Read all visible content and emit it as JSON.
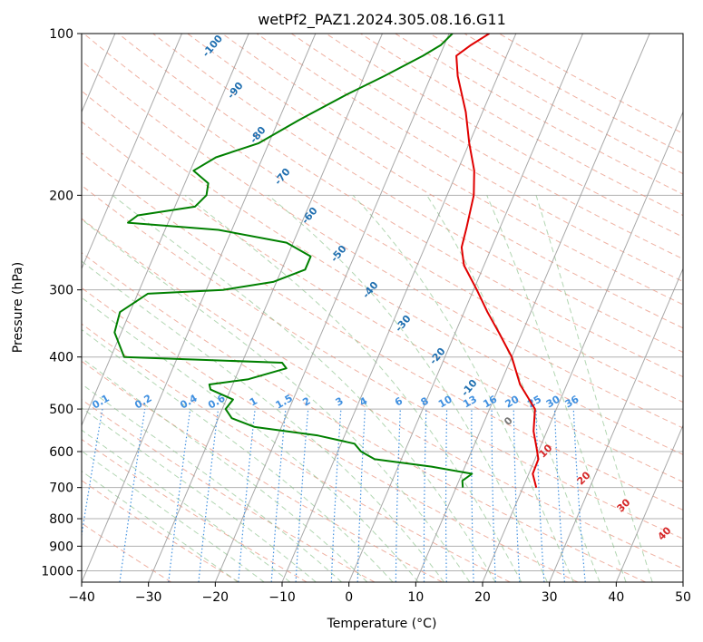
{
  "chart_data": {
    "type": "line",
    "subtype": "skew-t log-p diagram",
    "title": "wetPf2_PAZ1.2024.305.08.16.G11",
    "xlabel": "Temperature (°C)",
    "ylabel": "Pressure (hPa)",
    "xlim": [
      -40,
      50
    ],
    "ylim": [
      1050,
      100
    ],
    "y_scale": "log",
    "x_ticks": [
      -40,
      -30,
      -20,
      -10,
      0,
      10,
      20,
      30,
      40,
      50
    ],
    "y_ticks": [
      100,
      200,
      300,
      400,
      500,
      600,
      700,
      800,
      900,
      1000
    ],
    "grid": true,
    "series": [
      {
        "color": "#e00000",
        "points": [
          {
            "p": 700,
            "t": 22.0
          },
          {
            "p": 660,
            "t": 20.6
          },
          {
            "p": 620,
            "t": 20.5
          },
          {
            "p": 590,
            "t": 19.5
          },
          {
            "p": 550,
            "t": 18.0
          },
          {
            "p": 500,
            "t": 16.8
          },
          {
            "p": 450,
            "t": 13.0
          },
          {
            "p": 400,
            "t": 10.0
          },
          {
            "p": 360,
            "t": 6.5
          },
          {
            "p": 330,
            "t": 3.5
          },
          {
            "p": 300,
            "t": 0.5
          },
          {
            "p": 270,
            "t": -3.0
          },
          {
            "p": 250,
            "t": -4.5
          },
          {
            "p": 230,
            "t": -5.0
          },
          {
            "p": 200,
            "t": -6.0
          },
          {
            "p": 180,
            "t": -7.5
          },
          {
            "p": 160,
            "t": -10.0
          },
          {
            "p": 140,
            "t": -12.5
          },
          {
            "p": 120,
            "t": -16.0
          },
          {
            "p": 110,
            "t": -17.5
          },
          {
            "p": 105,
            "t": -16.0
          },
          {
            "p": 100,
            "t": -14.0
          }
        ]
      },
      {
        "color": "#008000",
        "points": [
          {
            "p": 700,
            "t": 11.0
          },
          {
            "p": 680,
            "t": 10.5
          },
          {
            "p": 660,
            "t": 11.5
          },
          {
            "p": 640,
            "t": 5.0
          },
          {
            "p": 620,
            "t": -4.0
          },
          {
            "p": 600,
            "t": -6.5
          },
          {
            "p": 580,
            "t": -8.0
          },
          {
            "p": 560,
            "t": -14.0
          },
          {
            "p": 540,
            "t": -24.0
          },
          {
            "p": 520,
            "t": -28.0
          },
          {
            "p": 500,
            "t": -29.5
          },
          {
            "p": 480,
            "t": -29.0
          },
          {
            "p": 460,
            "t": -33.0
          },
          {
            "p": 450,
            "t": -33.5
          },
          {
            "p": 440,
            "t": -28.0
          },
          {
            "p": 420,
            "t": -23.0
          },
          {
            "p": 410,
            "t": -24.0
          },
          {
            "p": 400,
            "t": -48.0
          },
          {
            "p": 360,
            "t": -51.0
          },
          {
            "p": 330,
            "t": -51.5
          },
          {
            "p": 305,
            "t": -48.5
          },
          {
            "p": 300,
            "t": -37.5
          },
          {
            "p": 290,
            "t": -30.5
          },
          {
            "p": 275,
            "t": -26.5
          },
          {
            "p": 260,
            "t": -26.5
          },
          {
            "p": 245,
            "t": -31.0
          },
          {
            "p": 232,
            "t": -42.0
          },
          {
            "p": 225,
            "t": -56.0
          },
          {
            "p": 218,
            "t": -55.0
          },
          {
            "p": 210,
            "t": -47.0
          },
          {
            "p": 200,
            "t": -46.0
          },
          {
            "p": 190,
            "t": -46.5
          },
          {
            "p": 180,
            "t": -49.5
          },
          {
            "p": 170,
            "t": -47.0
          },
          {
            "p": 160,
            "t": -41.5
          },
          {
            "p": 145,
            "t": -37.0
          },
          {
            "p": 130,
            "t": -31.5
          },
          {
            "p": 120,
            "t": -27.0
          },
          {
            "p": 110,
            "t": -22.5
          },
          {
            "p": 105,
            "t": -20.5
          },
          {
            "p": 100,
            "t": -19.5
          }
        ]
      }
    ],
    "dry_adiabats": {
      "labels": [
        "-100",
        "-90",
        "-80",
        "-70",
        "-60",
        "-50",
        "-40",
        "-30",
        "-20",
        "-10"
      ]
    },
    "freezing_level_label": "0",
    "moist_adiabats": {
      "labels": [
        "10",
        "20",
        "30",
        "40"
      ]
    },
    "mixing_ratio_lines": {
      "labels": [
        "0.1",
        "0.2",
        "0.4",
        "0.6",
        "1",
        "1.5",
        "2",
        "3",
        "4",
        "6",
        "8",
        "10",
        "13",
        "16",
        "20",
        "25",
        "30",
        "36"
      ]
    },
    "colors": {
      "temperature": "#e00000",
      "dewpoint": "#008000",
      "dry_adiabat": "#e8907a",
      "moist_adiabat": "#88c088",
      "mixing_ratio": "#4090e0",
      "isotherm": "#999999",
      "label_blue": "#1f6fb0",
      "label_red": "#d62728"
    }
  }
}
